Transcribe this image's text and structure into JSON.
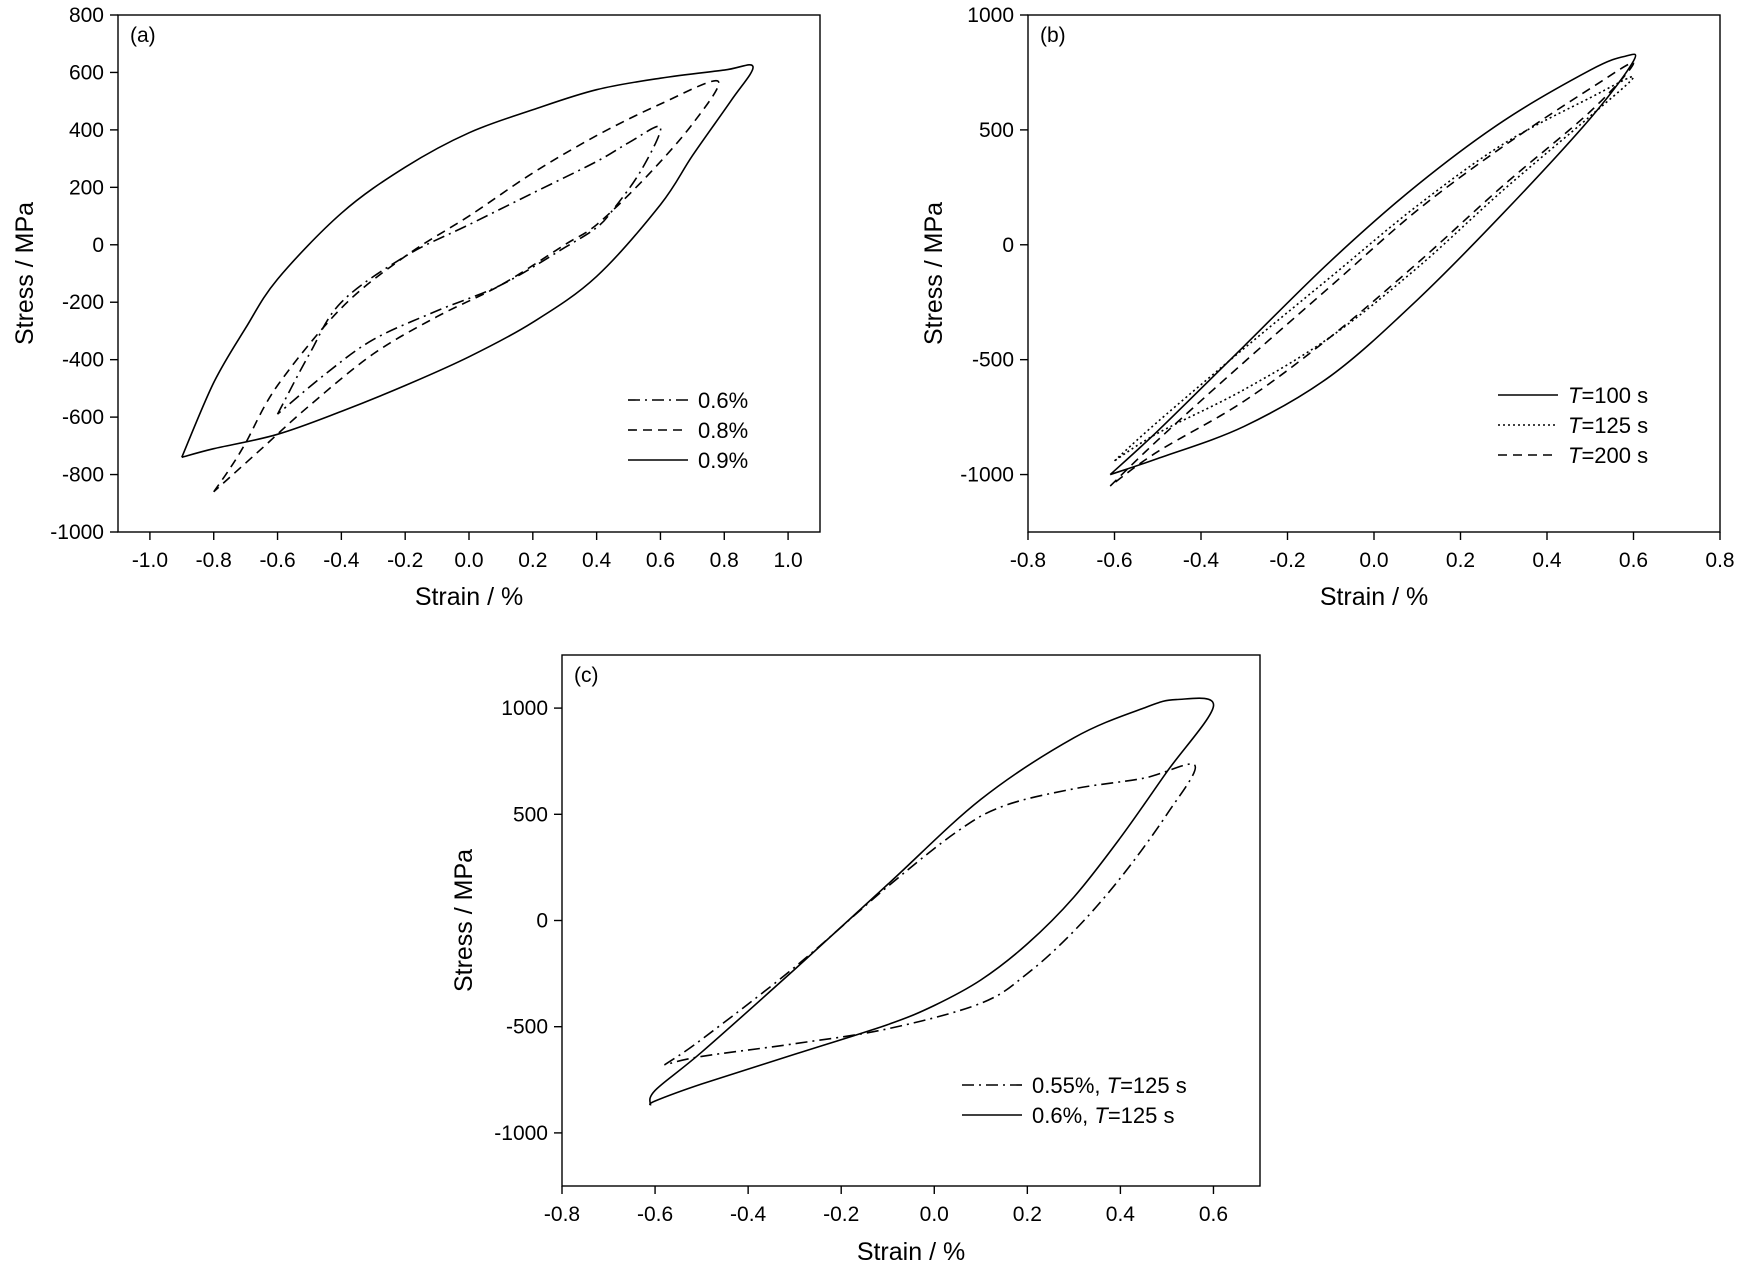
{
  "chart_data": [
    {
      "type": "line",
      "panel_label": "(a)",
      "xlabel": "Strain / %",
      "ylabel": "Stress / MPa",
      "xlim": [
        -1.1,
        1.1
      ],
      "ylim": [
        -1000,
        800
      ],
      "xticks": [
        -1.0,
        -0.8,
        -0.6,
        -0.4,
        -0.2,
        0.0,
        0.2,
        0.4,
        0.6,
        0.8,
        1.0
      ],
      "xtick_labels": [
        "-1.0",
        "-0.8",
        "-0.6",
        "-0.4",
        "-0.2",
        "0.0",
        "0.2",
        "0.4",
        "0.6",
        "0.8",
        "1.0"
      ],
      "yticks": [
        -1000,
        -800,
        -600,
        -400,
        -200,
        0,
        200,
        400,
        600,
        800
      ],
      "ytick_labels": [
        "-1000",
        "-800",
        "-600",
        "-400",
        "-200",
        "0",
        "200",
        "400",
        "600",
        "800"
      ],
      "grid": false,
      "legend_position": "bottom-right",
      "series": [
        {
          "name": "0.6%",
          "dash": "dashdot",
          "x": [
            -0.6,
            -0.5,
            -0.4,
            -0.2,
            0.0,
            0.2,
            0.4,
            0.5,
            0.6,
            0.54,
            0.45,
            0.4,
            0.3,
            0.1,
            -0.1,
            -0.3,
            -0.45,
            -0.6
          ],
          "y": [
            -590,
            -380,
            -200,
            -40,
            70,
            180,
            290,
            355,
            410,
            260,
            120,
            60,
            -10,
            -140,
            -230,
            -330,
            -450,
            -590
          ]
        },
        {
          "name": "0.8%",
          "dash": "dashed",
          "x": [
            -0.8,
            -0.75,
            -0.7,
            -0.6,
            -0.4,
            -0.2,
            0.0,
            0.2,
            0.4,
            0.6,
            0.78,
            0.7,
            0.55,
            0.4,
            0.3,
            0.1,
            -0.1,
            -0.3,
            -0.5,
            -0.65,
            -0.8
          ],
          "y": [
            -860,
            -780,
            -690,
            -490,
            -220,
            -40,
            100,
            250,
            380,
            490,
            570,
            420,
            230,
            70,
            0,
            -140,
            -250,
            -380,
            -560,
            -710,
            -860
          ]
        },
        {
          "name": "0.9%",
          "dash": "solid",
          "x": [
            -0.9,
            -0.8,
            -0.7,
            -0.6,
            -0.4,
            -0.2,
            0.0,
            0.2,
            0.4,
            0.6,
            0.8,
            0.89,
            0.82,
            0.7,
            0.6,
            0.4,
            0.2,
            0.0,
            -0.2,
            -0.4,
            -0.6,
            -0.8,
            -0.9
          ],
          "y": [
            -740,
            -480,
            -290,
            -120,
            110,
            270,
            390,
            470,
            540,
            580,
            608,
            620,
            500,
            310,
            140,
            -110,
            -270,
            -390,
            -490,
            -580,
            -660,
            -710,
            -740
          ]
        }
      ]
    },
    {
      "type": "line",
      "panel_label": "(b)",
      "xlabel": "Strain / %",
      "ylabel": "Stress / MPa",
      "xlim": [
        -0.8,
        0.8
      ],
      "ylim": [
        -1250,
        1000
      ],
      "xticks": [
        -0.8,
        -0.6,
        -0.4,
        -0.2,
        0.0,
        0.2,
        0.4,
        0.6,
        0.8
      ],
      "xtick_labels": [
        "-0.8",
        "-0.6",
        "-0.4",
        "-0.2",
        "0.0",
        "0.2",
        "0.4",
        "0.6",
        "0.8"
      ],
      "yticks": [
        -1000,
        -500,
        0,
        500,
        1000
      ],
      "ytick_labels": [
        "-1000",
        "-500",
        "0",
        "500",
        "1000"
      ],
      "grid": false,
      "legend_position": "bottom-right",
      "legend_prefix": "T",
      "series": [
        {
          "name": "=100 s",
          "dash": "solid",
          "x": [
            -0.61,
            -0.5,
            -0.3,
            -0.1,
            0.1,
            0.3,
            0.5,
            0.58,
            0.6,
            0.5,
            0.3,
            0.1,
            -0.1,
            -0.3,
            -0.5,
            -0.61
          ],
          "y": [
            -1000,
            -810,
            -440,
            -70,
            260,
            540,
            760,
            820,
            800,
            550,
            140,
            -240,
            -570,
            -790,
            -930,
            -1000
          ]
        },
        {
          "name": "=125 s",
          "dash": "dotted",
          "x": [
            -0.6,
            -0.5,
            -0.3,
            -0.1,
            0.1,
            0.3,
            0.5,
            0.6,
            0.5,
            0.3,
            0.1,
            -0.1,
            -0.3,
            -0.5,
            -0.6
          ],
          "y": [
            -940,
            -770,
            -450,
            -140,
            170,
            440,
            640,
            730,
            560,
            240,
            -100,
            -400,
            -630,
            -820,
            -940
          ]
        },
        {
          "name": "=200 s",
          "dash": "dashed",
          "x": [
            -0.61,
            -0.5,
            -0.3,
            -0.1,
            0.1,
            0.3,
            0.5,
            0.6,
            0.5,
            0.3,
            0.1,
            -0.1,
            -0.3,
            -0.5,
            -0.61
          ],
          "y": [
            -1050,
            -850,
            -510,
            -180,
            150,
            430,
            680,
            790,
            580,
            260,
            -80,
            -400,
            -680,
            -900,
            -1050
          ]
        }
      ]
    },
    {
      "type": "line",
      "panel_label": "(c)",
      "xlabel": "Strain / %",
      "ylabel": "Stress / MPa",
      "xlim": [
        -0.8,
        0.7
      ],
      "ylim": [
        -1250,
        1250
      ],
      "xticks": [
        -0.8,
        -0.6,
        -0.4,
        -0.2,
        0.0,
        0.2,
        0.4,
        0.6
      ],
      "xtick_labels": [
        "-0.8",
        "-0.6",
        "-0.4",
        "-0.2",
        "0.0",
        "0.2",
        "0.4",
        "0.6"
      ],
      "yticks": [
        -1000,
        -500,
        0,
        500,
        1000
      ],
      "ytick_labels": [
        "-1000",
        "-500",
        "0",
        "500",
        "1000"
      ],
      "grid": false,
      "legend_position": "bottom-right",
      "legend_prefix": "T",
      "series": [
        {
          "name": "0.55%, =125 s",
          "name_pre": "0.55%, ",
          "name_post": "=125 s",
          "dash": "dashdot",
          "x": [
            -0.58,
            -0.5,
            -0.3,
            -0.1,
            0.05,
            0.15,
            0.3,
            0.45,
            0.56,
            0.5,
            0.4,
            0.3,
            0.2,
            0.1,
            -0.1,
            -0.3,
            -0.5,
            -0.58
          ],
          "y": [
            -680,
            -560,
            -220,
            160,
            420,
            540,
            620,
            670,
            730,
            500,
            200,
            -50,
            -250,
            -390,
            -510,
            -580,
            -640,
            -680
          ]
        },
        {
          "name": "0.6%, =125 s",
          "name_pre": "0.6%, ",
          "name_post": "=125 s",
          "dash": "solid",
          "x": [
            -0.61,
            -0.6,
            -0.5,
            -0.3,
            -0.1,
            0.1,
            0.3,
            0.45,
            0.52,
            0.6,
            0.5,
            0.4,
            0.3,
            0.2,
            0.1,
            0.0,
            -0.1,
            -0.3,
            -0.5,
            -0.6,
            -0.61
          ],
          "y": [
            -870,
            -800,
            -620,
            -230,
            170,
            570,
            860,
            1000,
            1040,
            1010,
            700,
            390,
            110,
            -110,
            -280,
            -400,
            -490,
            -630,
            -770,
            -850,
            -870
          ]
        }
      ]
    }
  ]
}
